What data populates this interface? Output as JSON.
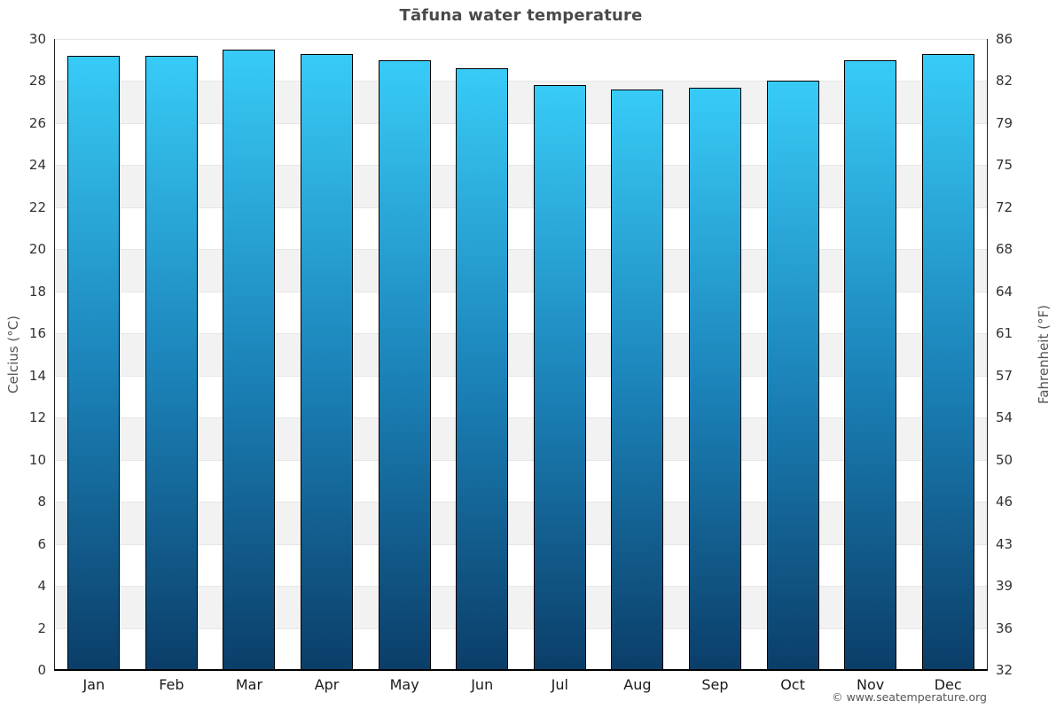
{
  "title": "Tāfuna water temperature",
  "footer": "© www.seatemperature.org",
  "axes": {
    "left_label": "Celcius (°C)",
    "right_label": "Fahrenheit (°F)"
  },
  "colors": {
    "bar_gradient_top": "#38cbf7",
    "bar_gradient_mid": "#1b82b8",
    "bar_gradient_bottom": "#0b3e69",
    "bar_border": "#000000",
    "band_gray": "#f2f2f2",
    "gridline": "#e6e6e6",
    "axis_line": "#222222",
    "baseline": "#000000",
    "title_text": "#4a4a4a",
    "tick_text": "#333333",
    "footer_text": "#555555"
  },
  "chart_data": {
    "type": "bar",
    "title": "Tāfuna water temperature",
    "categories": [
      "Jan",
      "Feb",
      "Mar",
      "Apr",
      "May",
      "Jun",
      "Jul",
      "Aug",
      "Sep",
      "Oct",
      "Nov",
      "Dec"
    ],
    "values": [
      29.2,
      29.2,
      29.5,
      29.3,
      29.0,
      28.6,
      27.8,
      27.6,
      27.7,
      28.0,
      29.0,
      29.3
    ],
    "unit": "°C",
    "xlabel": "",
    "ylabel_left": "Celcius (°C)",
    "ylabel_right": "Fahrenheit (°F)",
    "ylim": [
      0,
      30
    ],
    "yticks_celsius": [
      30,
      28,
      26,
      24,
      22,
      20,
      18,
      16,
      14,
      12,
      10,
      8,
      6,
      4,
      2,
      0
    ],
    "yticks_fahrenheit": [
      86,
      82,
      79,
      75,
      72,
      68,
      64,
      61,
      57,
      54,
      50,
      46,
      43,
      39,
      36,
      32
    ],
    "grid": "horizontal gridlines with alternating white/gray bands",
    "legend": "none"
  }
}
